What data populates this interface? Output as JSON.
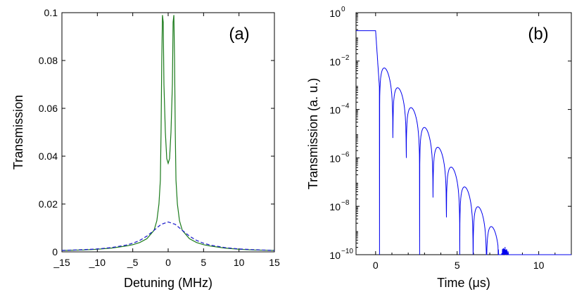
{
  "chart_data": [
    {
      "panel_label": "(a)",
      "type": "line",
      "xlabel": "Detuning (MHz)",
      "ylabel": "Transmission",
      "xlim": [
        -15,
        15
      ],
      "ylim": [
        0,
        0.1
      ],
      "xticks": [
        -15,
        -10,
        -5,
        0,
        5,
        10,
        15
      ],
      "xtick_labels": [
        "_15",
        "_10",
        "_5",
        "0",
        "5",
        "10",
        "15"
      ],
      "yticks": [
        0,
        0.02,
        0.04,
        0.06,
        0.08,
        0.1
      ],
      "ytick_labels": [
        "0",
        "0.02",
        "0.04",
        "0.06",
        "0.08",
        "0.1"
      ],
      "grid": false,
      "series": [
        {
          "color": "#1a7a1a",
          "style": "solid",
          "x": [
            -15,
            -12,
            -10,
            -8,
            -6,
            -5,
            -4,
            -3,
            -2,
            -1.6,
            -1.3,
            -1.1,
            -1.0,
            -0.9,
            -0.8,
            -0.7,
            -0.6,
            -0.4,
            -0.2,
            0,
            0.2,
            0.4,
            0.6,
            0.7,
            0.8,
            0.9,
            1.0,
            1.1,
            1.3,
            1.6,
            2,
            3,
            4,
            5,
            6,
            8,
            10,
            12,
            15
          ],
          "y": [
            0.0006,
            0.0008,
            0.0011,
            0.0016,
            0.0024,
            0.003,
            0.0039,
            0.0055,
            0.009,
            0.013,
            0.02,
            0.03,
            0.05,
            0.08,
            0.099,
            0.096,
            0.07,
            0.05,
            0.039,
            0.037,
            0.039,
            0.05,
            0.07,
            0.096,
            0.099,
            0.08,
            0.05,
            0.03,
            0.02,
            0.013,
            0.009,
            0.0055,
            0.0039,
            0.003,
            0.0024,
            0.0016,
            0.0011,
            0.0008,
            0.0006
          ]
        },
        {
          "color": "#2222cc",
          "style": "dashed",
          "x": [
            -15,
            -12,
            -10,
            -8,
            -6,
            -5,
            -4,
            -3,
            -2,
            -1,
            0,
            1,
            2,
            3,
            4,
            5,
            6,
            8,
            10,
            12,
            15
          ],
          "y": [
            0.0006,
            0.0009,
            0.0012,
            0.0018,
            0.0028,
            0.0036,
            0.0048,
            0.0066,
            0.009,
            0.0115,
            0.0125,
            0.0115,
            0.009,
            0.0066,
            0.0048,
            0.0036,
            0.0028,
            0.0018,
            0.0012,
            0.0009,
            0.0006
          ]
        }
      ]
    },
    {
      "panel_label": "(b)",
      "type": "line",
      "xlabel": "Time (μs)",
      "ylabel": "Transmission (a. u.)",
      "xlim": [
        -1.2,
        12
      ],
      "ylim": [
        1e-10,
        1
      ],
      "yscale": "log",
      "xticks": [
        0,
        5,
        10
      ],
      "xtick_labels": [
        "0",
        "5",
        "10"
      ],
      "yticks": [
        1,
        0.01,
        0.0001,
        1e-06,
        1e-08,
        1e-10
      ],
      "ytick_base": [
        "10",
        "10",
        "10",
        "10",
        "10",
        "10"
      ],
      "ytick_exp": [
        "0",
        "−2",
        "−4",
        "−6",
        "−8",
        "−10"
      ],
      "grid": false,
      "series": [
        {
          "color": "#0000ee",
          "style": "solid",
          "plateau": 0.18,
          "drop_start": 0,
          "period": 0.82,
          "first_min": 0.24,
          "peak_start": 0.02,
          "decay_per_us": 2.7,
          "noise_from": 7.5
        }
      ]
    }
  ]
}
